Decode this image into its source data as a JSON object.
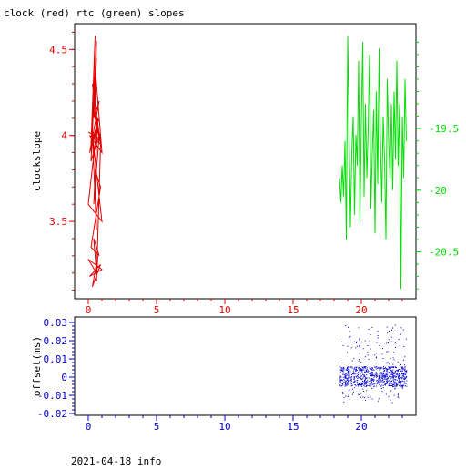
{
  "title": "clock (red) rtc (green) slopes",
  "footer": "2021-04-18 info",
  "colors": {
    "clock": "#e00000",
    "rtc": "#00e000",
    "offset": "#0000d0",
    "frame": "#000000"
  },
  "chart_data": [
    {
      "type": "line",
      "panel": "top",
      "title": "clock (red) rtc (green) slopes",
      "ylabel": "clockslope",
      "xlim": [
        -1,
        24
      ],
      "ylim": [
        3.05,
        4.65
      ],
      "y2lim": [
        -20.88,
        -18.65
      ],
      "xticks": [
        0,
        5,
        10,
        15,
        20
      ],
      "xtick_labels": [
        "0",
        "5",
        "10",
        "15",
        "20"
      ],
      "yticks": [
        3.5,
        4,
        4.5
      ],
      "ytick_labels": [
        "3.5",
        "4",
        "4.5"
      ],
      "y2ticks": [
        -19.5,
        -20,
        -20.5
      ],
      "y2tick_labels": [
        "-19.5",
        "-20",
        "-20.5"
      ],
      "grid": false,
      "series": [
        {
          "name": "clock",
          "axis": "left",
          "color": "#e00000",
          "x": [
            0.3,
            0.5,
            0.2,
            0.6,
            0.4,
            0.8,
            0.1,
            0.7,
            0.3,
            0.9,
            0.5,
            0.6,
            0.2,
            0.8,
            0.4,
            0.7,
            0.0,
            1.0,
            0.3,
            0.6,
            0.5,
            0.9,
            0.2,
            0.8,
            0.4,
            0.6,
            0.0,
            1.0,
            0.1,
            0.9,
            0.3,
            0.7,
            0.6,
            0.9,
            0.1,
            1.0,
            0.5,
            0.8,
            0.2,
            0.7,
            0.4,
            0.9,
            0.0
          ],
          "y": [
            4.05,
            4.58,
            3.95,
            4.45,
            4.1,
            4.2,
            3.9,
            4.05,
            4.3,
            3.95,
            4.1,
            4.55,
            3.85,
            4.0,
            3.6,
            4.1,
            3.6,
            3.5,
            4.0,
            3.45,
            3.8,
            3.7,
            3.35,
            3.3,
            3.4,
            3.2,
            3.28,
            3.22,
            3.18,
            3.25,
            3.12,
            3.3,
            3.15,
            3.95,
            4.0,
            3.9,
            4.4,
            4.1,
            3.95,
            4.05,
            4.15,
            3.98,
            4.02
          ]
        },
        {
          "name": "rtc",
          "axis": "right",
          "color": "#00e000",
          "x": [
            18.4,
            18.5,
            18.6,
            18.7,
            18.8,
            18.9,
            19.0,
            19.1,
            19.2,
            19.3,
            19.4,
            19.5,
            19.6,
            19.7,
            19.8,
            19.9,
            20.0,
            20.1,
            20.2,
            20.3,
            20.4,
            20.5,
            20.6,
            20.7,
            20.8,
            20.9,
            21.0,
            21.1,
            21.2,
            21.3,
            21.4,
            21.5,
            21.6,
            21.7,
            21.8,
            21.9,
            22.0,
            22.1,
            22.2,
            22.3,
            22.4,
            22.5,
            22.6,
            22.7,
            22.8,
            22.9,
            23.0,
            23.1,
            23.2,
            23.3
          ],
          "y": [
            -19.9,
            -20.1,
            -19.8,
            -20.05,
            -19.6,
            -20.4,
            -18.75,
            -19.5,
            -20.3,
            -19.7,
            -19.4,
            -20.2,
            -19.55,
            -19.8,
            -18.95,
            -20.25,
            -19.45,
            -18.8,
            -20.05,
            -19.3,
            -19.9,
            -19.5,
            -18.9,
            -20.15,
            -19.7,
            -19.35,
            -20.35,
            -19.2,
            -19.95,
            -18.85,
            -19.6,
            -20.1,
            -19.4,
            -19.75,
            -20.4,
            -19.1,
            -19.6,
            -19.9,
            -19.3,
            -20.0,
            -19.2,
            -19.75,
            -18.95,
            -19.8,
            -19.3,
            -20.8,
            -19.4,
            -19.9,
            -19.1,
            -19.6
          ]
        }
      ]
    },
    {
      "type": "scatter",
      "panel": "bottom",
      "ylabel": "offset(ms)",
      "xlim": [
        -1,
        24
      ],
      "ylim": [
        -0.021,
        0.033
      ],
      "xticks": [
        0,
        5,
        10,
        15,
        20
      ],
      "xtick_labels": [
        "0",
        "5",
        "10",
        "15",
        "20"
      ],
      "yticks": [
        -0.02,
        -0.01,
        0,
        0.01,
        0.02,
        0.03
      ],
      "ytick_labels": [
        "-0.02",
        "-0.01",
        "0",
        "0.01",
        "0.02",
        "0.03"
      ],
      "grid": false,
      "series": [
        {
          "name": "offset",
          "color": "#0000d0",
          "x_range": [
            18.4,
            23.3
          ],
          "core_band": [
            -0.005,
            0.006
          ],
          "outlier_range": [
            -0.014,
            0.029
          ],
          "point_count": 900
        }
      ]
    }
  ]
}
